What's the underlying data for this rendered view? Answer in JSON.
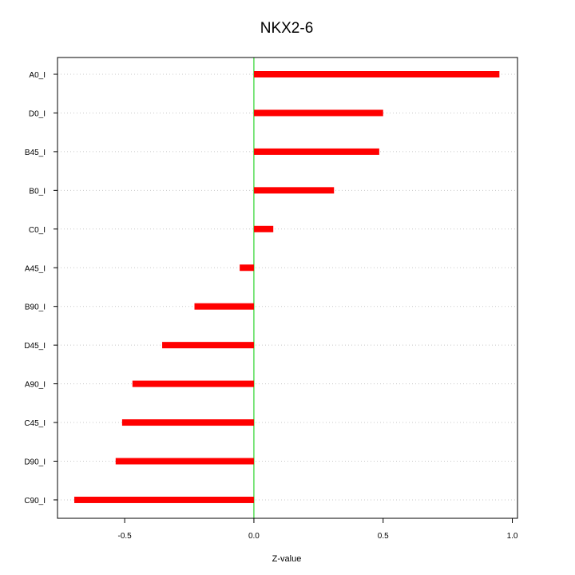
{
  "chart_data": {
    "type": "bar",
    "orientation": "horizontal",
    "title": "NKX2-6",
    "xlabel": "Z-value",
    "ylabel": "",
    "categories": [
      "A0_I",
      "D0_I",
      "B45_I",
      "B0_I",
      "C0_I",
      "A45_I",
      "B90_I",
      "D45_I",
      "A90_I",
      "C45_I",
      "D90_I",
      "C90_I"
    ],
    "values": [
      0.95,
      0.5,
      0.485,
      0.31,
      0.075,
      -0.055,
      -0.23,
      -0.355,
      -0.47,
      -0.51,
      -0.535,
      -0.695
    ],
    "xlim": [
      -0.76,
      1.02
    ],
    "xticks": [
      -0.5,
      0.0,
      0.5,
      1.0
    ],
    "xtick_labels": [
      "-0.5",
      "0.0",
      "0.5",
      "1.0"
    ],
    "reference_line": 0.0,
    "grid": "horizontal dotted",
    "colors": {
      "bar": "#ff0000",
      "reference": "#00cc00",
      "grid": "#c8c8c8",
      "frame": "#000000"
    }
  }
}
